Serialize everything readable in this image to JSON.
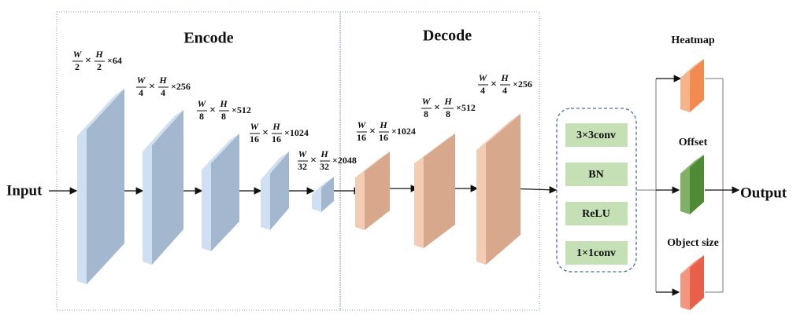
{
  "encode_title": "Encode",
  "decode_title": "Decode",
  "input_label": "Input",
  "output_label": "Output",
  "encoder_blocks": [
    {
      "w_num": "W",
      "w_den": "2",
      "times": "×",
      "h_num": "H",
      "h_den": "2",
      "channels": "×64"
    },
    {
      "w_num": "W",
      "w_den": "4",
      "times": "×",
      "h_num": "H",
      "h_den": "4",
      "channels": "×256"
    },
    {
      "w_num": "W",
      "w_den": "8",
      "times": "×",
      "h_num": "H",
      "h_den": "8",
      "channels": "×512"
    },
    {
      "w_num": "W",
      "w_den": "16",
      "times": "×",
      "h_num": "H",
      "h_den": "16",
      "channels": "×1024"
    },
    {
      "w_num": "W",
      "w_den": "32",
      "times": "×",
      "h_num": "H",
      "h_den": "32",
      "channels": "×2048"
    }
  ],
  "decoder_blocks": [
    {
      "w_num": "W",
      "w_den": "16",
      "times": "×",
      "h_num": "H",
      "h_den": "16",
      "channels": "×1024"
    },
    {
      "w_num": "W",
      "w_den": "8",
      "times": "×",
      "h_num": "H",
      "h_den": "8",
      "channels": "×512"
    },
    {
      "w_num": "W",
      "w_den": "4",
      "times": "×",
      "h_num": "H",
      "h_den": "4",
      "channels": "×256"
    }
  ],
  "module_layers": [
    "3×3conv",
    "BN",
    "ReLU",
    "1×1conv"
  ],
  "heads": [
    {
      "label": "Heatmap"
    },
    {
      "label": "Offset"
    },
    {
      "label": "Object size"
    }
  ]
}
